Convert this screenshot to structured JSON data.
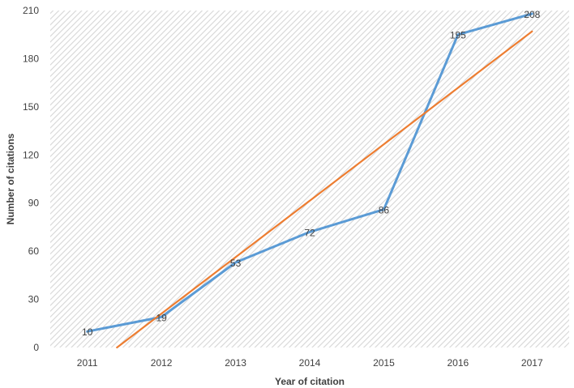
{
  "chart_data": {
    "type": "line",
    "categories": [
      "2011",
      "2012",
      "2013",
      "2014",
      "2015",
      "2016",
      "2017"
    ],
    "series": [
      {
        "values": [
          10,
          19,
          53,
          72,
          86,
          195,
          208
        ],
        "color": "#5B9BD5",
        "data_labels": true
      }
    ],
    "trendline": {
      "kind": "linear",
      "color": "#ED7D31",
      "start": [
        2011.4,
        0
      ],
      "end": [
        2017,
        197
      ]
    },
    "xlabel": "Year of citation",
    "ylabel": "Number of citations",
    "ylim": [
      0,
      210
    ],
    "yticks": [
      0,
      30,
      60,
      90,
      120,
      150,
      180,
      210
    ],
    "plot_background": "hatched-gray",
    "grid": false,
    "legend": "none"
  }
}
